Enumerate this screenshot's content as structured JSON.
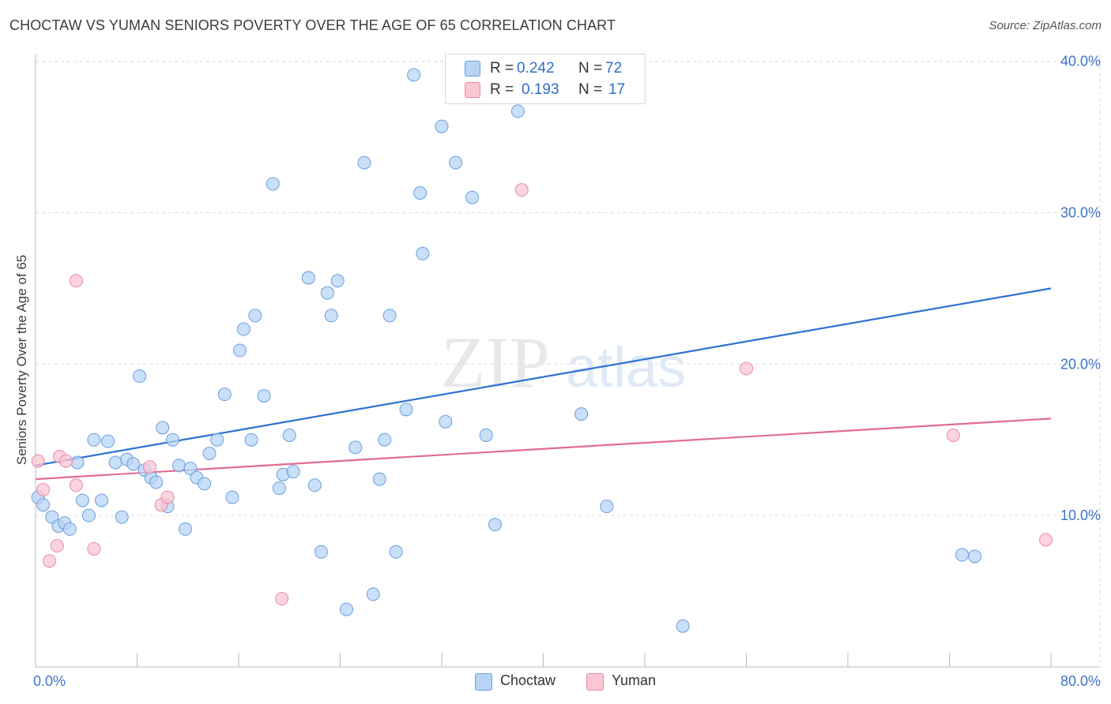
{
  "header": {
    "title": "CHOCTAW VS YUMAN SENIORS POVERTY OVER THE AGE OF 65 CORRELATION CHART",
    "source": "Source: ZipAtlas.com"
  },
  "colors": {
    "choctaw_fill": "#b8d4f5",
    "choctaw_stroke": "#6a9fdc",
    "choctaw_line": "#2e72d2",
    "yuman_fill": "#f9c6d4",
    "yuman_stroke": "#e88aa6",
    "yuman_line": "#e06c95",
    "tick_label": "#3d74c8",
    "grid": "#dddddd"
  },
  "legend": {
    "rows": [
      {
        "series": "Choctaw",
        "r_label": "R =",
        "r_value": "0.242",
        "n_label": "N =",
        "n_value": "72"
      },
      {
        "series": "Yuman",
        "r_label": "R =",
        "r_value": "0.193",
        "n_label": "N =",
        "n_value": "17"
      }
    ]
  },
  "watermark": {
    "zip": "ZIP",
    "atlas": "atlas"
  },
  "chart_data": {
    "type": "scatter",
    "title": "CHOCTAW VS YUMAN SENIORS POVERTY OVER THE AGE OF 65 CORRELATION CHART",
    "xlabel": "",
    "ylabel": "Seniors Poverty Over the Age of 65",
    "xlim": [
      0,
      80
    ],
    "ylim": [
      0,
      40.5
    ],
    "x_tick_labels": [
      "0.0%",
      "80.0%"
    ],
    "y_ticks": [
      10,
      20,
      30,
      40
    ],
    "y_tick_labels": [
      "10.0%",
      "20.0%",
      "30.0%",
      "40.0%"
    ],
    "grid": true,
    "legend_position": "top-center",
    "series": [
      {
        "name": "Choctaw",
        "r": 0.242,
        "n": 72,
        "trend": {
          "x": [
            0,
            80
          ],
          "y": [
            13.3,
            25.0
          ]
        },
        "points": [
          [
            0.2,
            11.2
          ],
          [
            0.6,
            10.7
          ],
          [
            1.3,
            9.9
          ],
          [
            1.8,
            9.3
          ],
          [
            2.3,
            9.5
          ],
          [
            2.7,
            9.1
          ],
          [
            3.3,
            13.5
          ],
          [
            3.7,
            11.0
          ],
          [
            4.2,
            10.0
          ],
          [
            4.6,
            15.0
          ],
          [
            5.2,
            11.0
          ],
          [
            5.7,
            14.9
          ],
          [
            6.3,
            13.5
          ],
          [
            6.8,
            9.9
          ],
          [
            7.2,
            13.7
          ],
          [
            7.7,
            13.4
          ],
          [
            8.2,
            19.2
          ],
          [
            8.6,
            13.0
          ],
          [
            9.1,
            12.5
          ],
          [
            9.5,
            12.2
          ],
          [
            10.0,
            15.8
          ],
          [
            10.4,
            10.6
          ],
          [
            10.8,
            15.0
          ],
          [
            11.3,
            13.3
          ],
          [
            11.8,
            9.1
          ],
          [
            12.2,
            13.1
          ],
          [
            12.7,
            12.5
          ],
          [
            13.3,
            12.1
          ],
          [
            13.7,
            14.1
          ],
          [
            14.3,
            15.0
          ],
          [
            14.9,
            18.0
          ],
          [
            15.5,
            11.2
          ],
          [
            16.1,
            20.9
          ],
          [
            16.4,
            22.3
          ],
          [
            17.0,
            15.0
          ],
          [
            17.3,
            23.2
          ],
          [
            18.0,
            17.9
          ],
          [
            18.7,
            31.9
          ],
          [
            19.2,
            11.8
          ],
          [
            19.5,
            12.7
          ],
          [
            20.0,
            15.3
          ],
          [
            20.3,
            12.9
          ],
          [
            21.5,
            25.7
          ],
          [
            22.0,
            12.0
          ],
          [
            22.5,
            7.6
          ],
          [
            23.0,
            24.7
          ],
          [
            23.3,
            23.2
          ],
          [
            23.8,
            25.5
          ],
          [
            24.5,
            3.8
          ],
          [
            25.2,
            14.5
          ],
          [
            25.9,
            33.3
          ],
          [
            26.6,
            4.8
          ],
          [
            27.1,
            12.4
          ],
          [
            27.5,
            15.0
          ],
          [
            27.9,
            23.2
          ],
          [
            28.4,
            7.6
          ],
          [
            29.2,
            17.0
          ],
          [
            29.8,
            39.1
          ],
          [
            30.3,
            31.3
          ],
          [
            30.5,
            27.3
          ],
          [
            32.0,
            35.7
          ],
          [
            32.3,
            16.2
          ],
          [
            33.1,
            33.3
          ],
          [
            34.4,
            31.0
          ],
          [
            35.5,
            15.3
          ],
          [
            36.2,
            9.4
          ],
          [
            38.0,
            36.7
          ],
          [
            43.0,
            16.7
          ],
          [
            45.0,
            10.6
          ],
          [
            51.0,
            2.7
          ],
          [
            73.0,
            7.4
          ],
          [
            74.0,
            7.3
          ]
        ]
      },
      {
        "name": "Yuman",
        "r": 0.193,
        "n": 17,
        "trend": {
          "x": [
            0,
            80
          ],
          "y": [
            12.4,
            16.4
          ]
        },
        "points": [
          [
            0.2,
            13.6
          ],
          [
            0.6,
            11.7
          ],
          [
            1.1,
            7.0
          ],
          [
            1.7,
            8.0
          ],
          [
            1.9,
            13.9
          ],
          [
            2.4,
            13.6
          ],
          [
            3.2,
            25.5
          ],
          [
            3.2,
            12.0
          ],
          [
            4.6,
            7.8
          ],
          [
            9.0,
            13.2
          ],
          [
            9.9,
            10.7
          ],
          [
            10.4,
            11.2
          ],
          [
            19.4,
            4.5
          ],
          [
            38.3,
            31.5
          ],
          [
            56.0,
            19.7
          ],
          [
            72.3,
            15.3
          ],
          [
            79.6,
            8.4
          ]
        ]
      }
    ]
  }
}
